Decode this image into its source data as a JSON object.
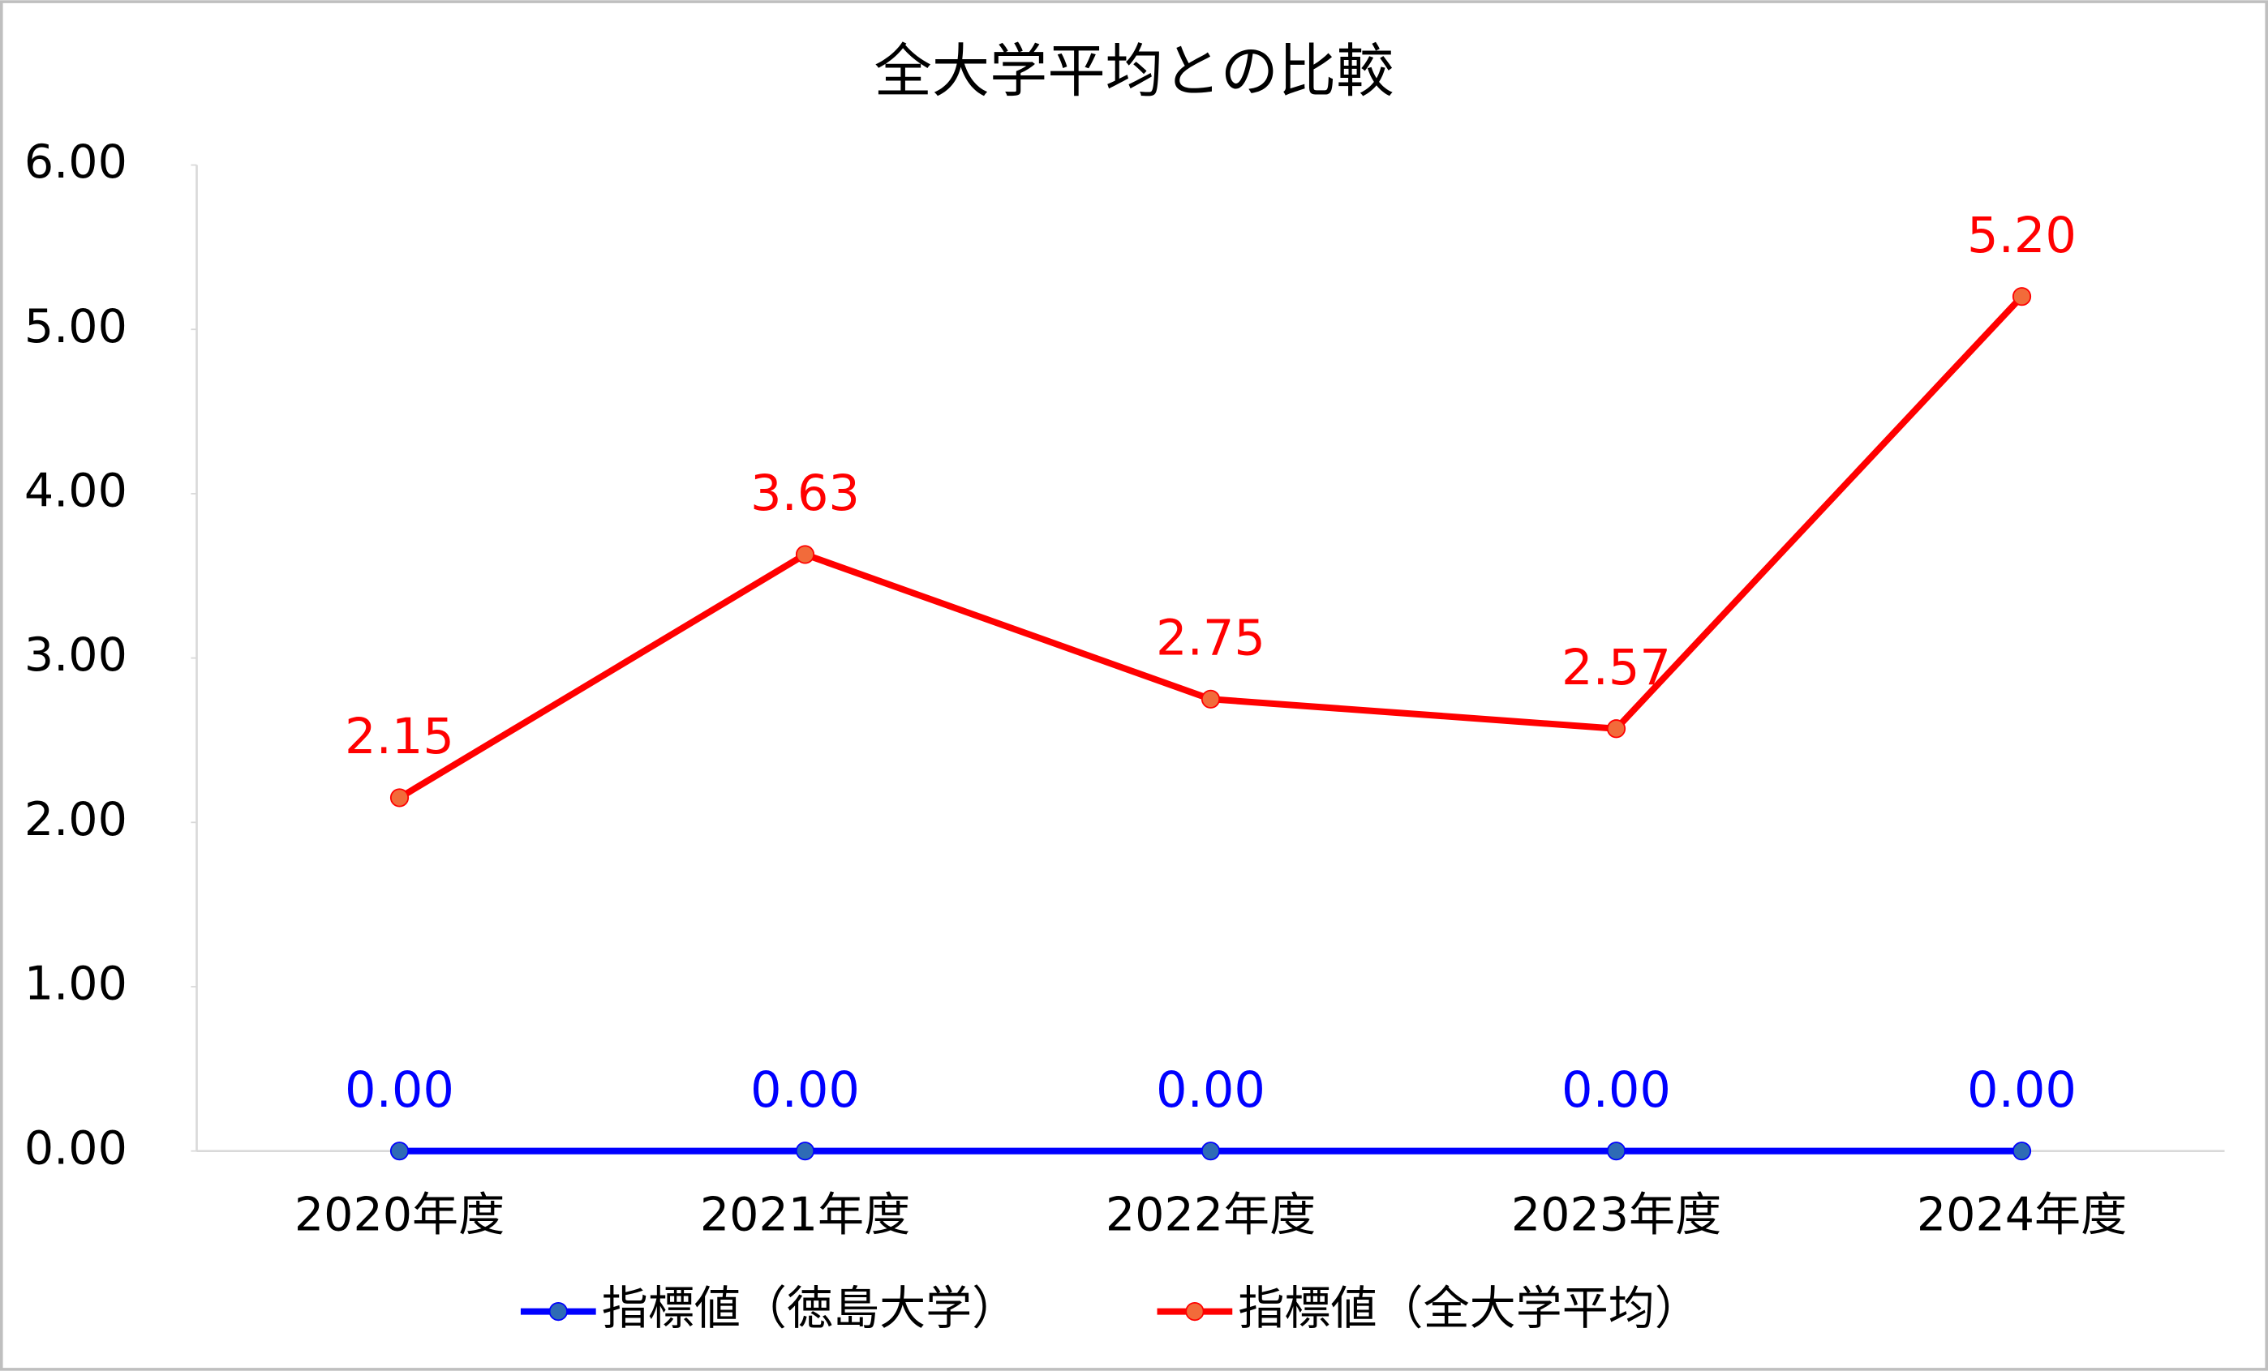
{
  "chart_data": {
    "type": "line",
    "title": "全大学平均との比較",
    "categories": [
      "2020年度",
      "2021年度",
      "2022年度",
      "2023年度",
      "2024年度"
    ],
    "series": [
      {
        "name": "指標値（徳島大学）",
        "color": "#0000ff",
        "marker_color": "#2e6bb5",
        "values": [
          0,
          0,
          0,
          0,
          0
        ],
        "value_labels": [
          "0.00",
          "0.00",
          "0.00",
          "0.00",
          "0.00"
        ]
      },
      {
        "name": "指標値（全大学平均）",
        "color": "#ff0000",
        "marker_color": "#f26b3a",
        "values": [
          2.15,
          3.63,
          2.75,
          2.57,
          5.2
        ],
        "value_labels": [
          "2.15",
          "3.63",
          "2.75",
          "2.57",
          "5.20"
        ]
      }
    ],
    "ylim": [
      0,
      6
    ],
    "yticks": [
      {
        "value": 0,
        "label": "0.00"
      },
      {
        "value": 1,
        "label": "1.00"
      },
      {
        "value": 2,
        "label": "2.00"
      },
      {
        "value": 3,
        "label": "3.00"
      },
      {
        "value": 4,
        "label": "4.00"
      },
      {
        "value": 5,
        "label": "5.00"
      },
      {
        "value": 6,
        "label": "6.00"
      }
    ],
    "grid": false,
    "legend": "bottom"
  }
}
